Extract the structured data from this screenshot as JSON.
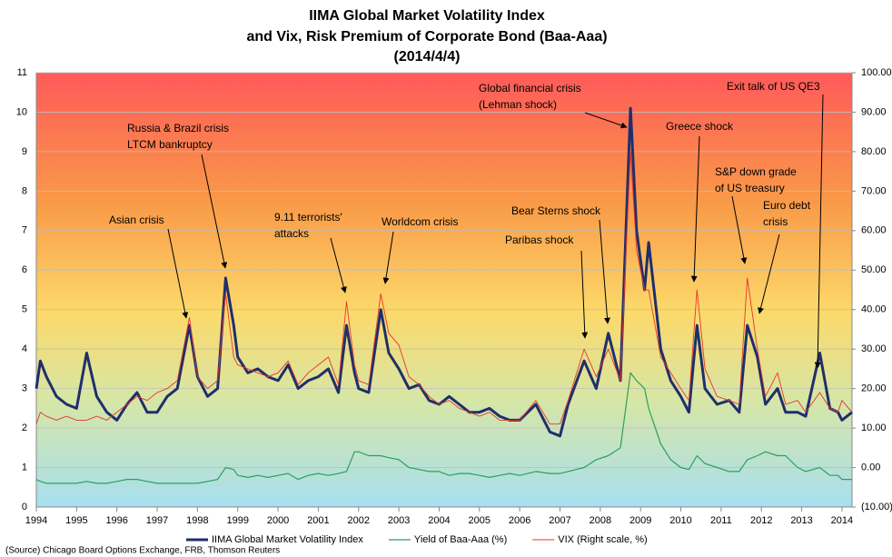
{
  "chart_data": {
    "type": "line",
    "title": [
      "IIMA Global Market Volatility Index",
      "and Vix, Risk Premium of Corporate Bond (Baa-Aaa)",
      "(2014/4/4)"
    ],
    "source": "(Source) Chicago Board Options Exchange, FRB, Thomson Reuters",
    "x": [
      1994.0,
      1994.1,
      1994.25,
      1994.5,
      1994.75,
      1995.0,
      1995.25,
      1995.5,
      1995.75,
      1996.0,
      1996.25,
      1996.5,
      1996.75,
      1997.0,
      1997.25,
      1997.5,
      1997.8,
      1998.0,
      1998.25,
      1998.5,
      1998.7,
      1998.9,
      1999.0,
      1999.25,
      1999.5,
      1999.75,
      2000.0,
      2000.25,
      2000.5,
      2000.75,
      2001.0,
      2001.25,
      2001.5,
      2001.7,
      2001.9,
      2002.0,
      2002.25,
      2002.55,
      2002.75,
      2003.0,
      2003.25,
      2003.5,
      2003.75,
      2004.0,
      2004.25,
      2004.5,
      2004.75,
      2005.0,
      2005.25,
      2005.5,
      2005.75,
      2006.0,
      2006.4,
      2006.75,
      2007.0,
      2007.2,
      2007.6,
      2007.9,
      2008.2,
      2008.5,
      2008.75,
      2008.9,
      2009.1,
      2009.2,
      2009.5,
      2009.75,
      2010.0,
      2010.2,
      2010.4,
      2010.6,
      2010.9,
      2011.2,
      2011.45,
      2011.65,
      2011.9,
      2012.1,
      2012.4,
      2012.6,
      2012.9,
      2013.1,
      2013.45,
      2013.7,
      2013.9,
      2014.0,
      2014.25
    ],
    "series": [
      {
        "name": "IIMA Global Market Volatility Index",
        "color": "#1f2f6b",
        "axis": "y",
        "values": [
          3.0,
          3.7,
          3.3,
          2.8,
          2.6,
          2.5,
          3.9,
          2.8,
          2.4,
          2.2,
          2.6,
          2.9,
          2.4,
          2.4,
          2.8,
          3.0,
          4.6,
          3.3,
          2.8,
          3.0,
          5.8,
          4.6,
          3.8,
          3.4,
          3.5,
          3.3,
          3.2,
          3.6,
          3.0,
          3.2,
          3.3,
          3.5,
          2.9,
          4.6,
          3.4,
          3.0,
          2.9,
          5.0,
          3.9,
          3.5,
          3.0,
          3.1,
          2.7,
          2.6,
          2.8,
          2.6,
          2.4,
          2.4,
          2.5,
          2.3,
          2.2,
          2.2,
          2.6,
          1.9,
          1.8,
          2.6,
          3.7,
          3.0,
          4.4,
          3.2,
          10.1,
          7.0,
          5.5,
          6.7,
          4.0,
          3.2,
          2.8,
          2.4,
          4.6,
          3.0,
          2.6,
          2.7,
          2.4,
          4.6,
          3.8,
          2.6,
          3.0,
          2.4,
          2.4,
          2.3,
          3.9,
          2.5,
          2.4,
          2.2,
          2.4
        ]
      },
      {
        "name": "Yield of Baa-Aaa (%)",
        "color": "#2ca05a",
        "axis": "y",
        "values": [
          0.7,
          0.65,
          0.6,
          0.6,
          0.6,
          0.6,
          0.65,
          0.6,
          0.6,
          0.65,
          0.7,
          0.7,
          0.65,
          0.6,
          0.6,
          0.6,
          0.6,
          0.6,
          0.65,
          0.7,
          1.0,
          0.95,
          0.8,
          0.75,
          0.8,
          0.75,
          0.8,
          0.85,
          0.7,
          0.8,
          0.85,
          0.8,
          0.85,
          0.9,
          1.4,
          1.4,
          1.3,
          1.3,
          1.25,
          1.2,
          1.0,
          0.95,
          0.9,
          0.9,
          0.8,
          0.85,
          0.85,
          0.8,
          0.75,
          0.8,
          0.85,
          0.8,
          0.9,
          0.85,
          0.85,
          0.9,
          1.0,
          1.2,
          1.3,
          1.5,
          3.4,
          3.2,
          3.0,
          2.5,
          1.6,
          1.2,
          1.0,
          0.95,
          1.3,
          1.1,
          1.0,
          0.9,
          0.9,
          1.2,
          1.3,
          1.4,
          1.3,
          1.3,
          1.0,
          0.9,
          1.0,
          0.8,
          0.8,
          0.7,
          0.7
        ]
      },
      {
        "name": "VIX (Right scale, %)",
        "color": "#e8352a",
        "axis": "y2",
        "values": [
          11,
          14,
          13,
          12,
          13,
          12,
          12,
          13,
          12,
          14,
          16,
          18,
          17,
          19,
          20,
          22,
          38,
          23,
          20,
          22,
          44,
          28,
          26,
          25,
          24,
          23,
          24,
          27,
          21,
          24,
          26,
          28,
          21,
          42,
          26,
          22,
          21,
          44,
          34,
          31,
          23,
          21,
          18,
          16,
          17,
          15,
          14,
          13,
          14,
          12,
          12,
          12,
          17,
          11,
          11,
          17,
          30,
          23,
          30,
          22,
          80,
          55,
          45,
          45,
          28,
          24,
          20,
          17,
          45,
          25,
          18,
          17,
          16,
          48,
          30,
          18,
          24,
          16,
          17,
          14,
          19,
          15,
          14,
          17,
          14
        ]
      }
    ],
    "xlim": [
      1994,
      2014.25
    ],
    "xticks": [
      1994,
      1995,
      1996,
      1997,
      1998,
      1999,
      2000,
      2001,
      2002,
      2003,
      2004,
      2005,
      2006,
      2007,
      2008,
      2009,
      2010,
      2011,
      2012,
      2013,
      2014
    ],
    "ylim": [
      0,
      11
    ],
    "yticks": [
      0,
      1,
      2,
      3,
      4,
      5,
      6,
      7,
      8,
      9,
      10,
      11
    ],
    "y2lim": [
      -10,
      100
    ],
    "y2ticks": [
      {
        "value": -10,
        "label": "(10.00)"
      },
      {
        "value": 0,
        "label": "0.00"
      },
      {
        "value": 10,
        "label": "10.00"
      },
      {
        "value": 20,
        "label": "20.00"
      },
      {
        "value": 30,
        "label": "30.00"
      },
      {
        "value": 40,
        "label": "40.00"
      },
      {
        "value": 50,
        "label": "50.00"
      },
      {
        "value": 60,
        "label": "60.00"
      },
      {
        "value": 70,
        "label": "70.00"
      },
      {
        "value": 80,
        "label": "80.00"
      },
      {
        "value": 90,
        "label": "90.00"
      },
      {
        "value": 100,
        "label": "100.00"
      }
    ],
    "grid": true,
    "legend": "bottom",
    "annotations": [
      [
        "Asian crisis"
      ],
      [
        "Russia & Brazil crisis",
        "LTCM bankruptcy"
      ],
      [
        "9.11 terrorists'",
        "attacks"
      ],
      [
        "Worldcom crisis"
      ],
      [
        "Bear Sterns shock"
      ],
      [
        "Paribas shock"
      ],
      [
        "Global financial crisis",
        "(Lehman shock)"
      ],
      [
        "Greece shock"
      ],
      [
        "S&P down grade",
        "of US treasury"
      ],
      [
        "Euro debt",
        "crisis"
      ],
      [
        "Exit talk of US QE3"
      ]
    ]
  }
}
